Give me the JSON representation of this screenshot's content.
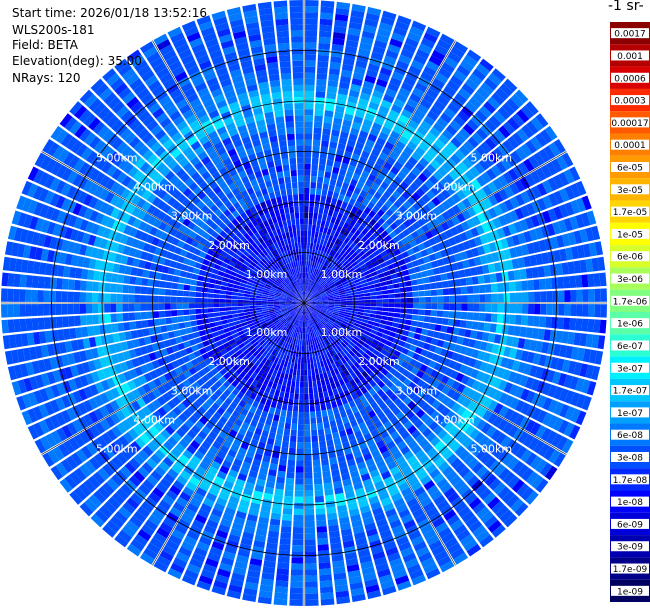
{
  "header": {
    "start_time": "Start time: 2026/01/18 13:52:16",
    "instrument": "WLS200s-181",
    "field": "Field: BETA",
    "elevation": "Elevation(deg): 35.00",
    "nrays": "NRays: 120"
  },
  "colorbar": {
    "title": "-1 sr-",
    "labels": [
      "0.0017",
      "0.001",
      "0.0006",
      "0.0003",
      "0.00017",
      "0.0001",
      "6e-05",
      "3e-05",
      "1.7e-05",
      "1e-05",
      "6e-06",
      "3e-06",
      "1.7e-06",
      "1e-06",
      "6e-07",
      "3e-07",
      "1.7e-07",
      "1e-07",
      "6e-08",
      "3e-08",
      "1.7e-08",
      "1e-08",
      "6e-09",
      "3e-09",
      "1.7e-09",
      "1e-09"
    ],
    "colors": [
      "#8b0000",
      "#b30000",
      "#d80000",
      "#ff2a00",
      "#ff5a00",
      "#ff8000",
      "#ff9a00",
      "#ffb400",
      "#ffd400",
      "#ffff00",
      "#d8ff2a",
      "#a8ff5a",
      "#80ff80",
      "#5affa8",
      "#2affd4",
      "#00f0ff",
      "#00c8ff",
      "#00a0ff",
      "#0078ff",
      "#0050ff",
      "#0028ff",
      "#0000ff",
      "#0000d8",
      "#0000b0",
      "#000088",
      "#000060"
    ]
  },
  "chart_data": {
    "type": "heatmap",
    "projection": "polar-ppi",
    "field": "BETA",
    "elevation_deg": 35.0,
    "n_rays": 120,
    "range_rings_km": [
      1,
      2,
      3,
      4,
      5
    ],
    "ring_labels": [
      "1.00km",
      "2.00km",
      "3.00km",
      "4.00km",
      "5.00km"
    ],
    "max_range_km": 6.0,
    "scale": "log",
    "value_range": [
      1e-09,
      0.0017
    ],
    "feature": "enhanced backscatter band near 4 km range",
    "grid": true
  }
}
